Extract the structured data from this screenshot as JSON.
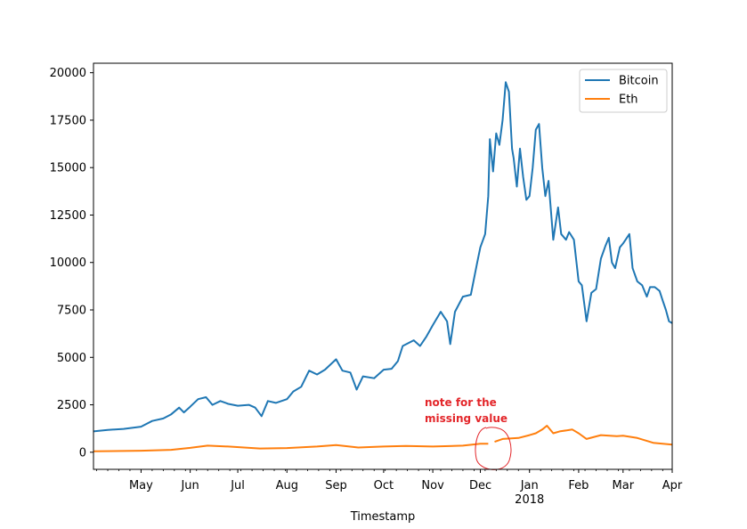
{
  "chart_data": {
    "type": "line",
    "title": "",
    "xlabel": "Timestamp",
    "ylabel": "",
    "xlim": [
      "2017-04-01",
      "2018-04-01"
    ],
    "ylim": [
      -900,
      20500
    ],
    "x_ticks": [
      {
        "date": "2017-05-01",
        "label": "May"
      },
      {
        "date": "2017-06-01",
        "label": "Jun"
      },
      {
        "date": "2017-07-01",
        "label": "Jul"
      },
      {
        "date": "2017-08-01",
        "label": "Aug"
      },
      {
        "date": "2017-09-01",
        "label": "Sep"
      },
      {
        "date": "2017-10-01",
        "label": "Oct"
      },
      {
        "date": "2017-11-01",
        "label": "Nov"
      },
      {
        "date": "2017-12-01",
        "label": "Dec"
      },
      {
        "date": "2018-01-01",
        "label": "Jan",
        "sublabel": "2018"
      },
      {
        "date": "2018-02-01",
        "label": "Feb"
      },
      {
        "date": "2018-03-01",
        "label": "Mar"
      },
      {
        "date": "2018-04-01",
        "label": "Apr"
      }
    ],
    "y_ticks": [
      0,
      2500,
      5000,
      7500,
      10000,
      12500,
      15000,
      17500,
      20000
    ],
    "grid": false,
    "legend": "top-right",
    "series": [
      {
        "name": "Bitcoin",
        "color": "#1f77b4",
        "points": [
          [
            "2017-04-01",
            1100
          ],
          [
            "2017-04-10",
            1180
          ],
          [
            "2017-04-20",
            1230
          ],
          [
            "2017-05-01",
            1350
          ],
          [
            "2017-05-08",
            1650
          ],
          [
            "2017-05-15",
            1780
          ],
          [
            "2017-05-20",
            2000
          ],
          [
            "2017-05-25",
            2350
          ],
          [
            "2017-05-28",
            2100
          ],
          [
            "2017-06-01",
            2400
          ],
          [
            "2017-06-06",
            2800
          ],
          [
            "2017-06-11",
            2900
          ],
          [
            "2017-06-15",
            2500
          ],
          [
            "2017-06-20",
            2700
          ],
          [
            "2017-06-25",
            2550
          ],
          [
            "2017-07-01",
            2450
          ],
          [
            "2017-07-08",
            2500
          ],
          [
            "2017-07-12",
            2350
          ],
          [
            "2017-07-16",
            1900
          ],
          [
            "2017-07-20",
            2700
          ],
          [
            "2017-07-25",
            2600
          ],
          [
            "2017-08-01",
            2800
          ],
          [
            "2017-08-05",
            3200
          ],
          [
            "2017-08-10",
            3450
          ],
          [
            "2017-08-15",
            4300
          ],
          [
            "2017-08-20",
            4100
          ],
          [
            "2017-08-25",
            4350
          ],
          [
            "2017-09-01",
            4900
          ],
          [
            "2017-09-05",
            4300
          ],
          [
            "2017-09-10",
            4200
          ],
          [
            "2017-09-14",
            3300
          ],
          [
            "2017-09-18",
            4000
          ],
          [
            "2017-09-25",
            3900
          ],
          [
            "2017-10-01",
            4350
          ],
          [
            "2017-10-06",
            4400
          ],
          [
            "2017-10-10",
            4800
          ],
          [
            "2017-10-13",
            5600
          ],
          [
            "2017-10-20",
            5900
          ],
          [
            "2017-10-24",
            5600
          ],
          [
            "2017-10-28",
            6100
          ],
          [
            "2017-11-01",
            6700
          ],
          [
            "2017-11-06",
            7400
          ],
          [
            "2017-11-10",
            6900
          ],
          [
            "2017-11-12",
            5700
          ],
          [
            "2017-11-15",
            7400
          ],
          [
            "2017-11-20",
            8200
          ],
          [
            "2017-11-25",
            8300
          ],
          [
            "2017-11-29",
            10000
          ],
          [
            "2017-12-01",
            10800
          ],
          [
            "2017-12-04",
            11500
          ],
          [
            "2017-12-06",
            13500
          ],
          [
            "2017-12-07",
            16500
          ],
          [
            "2017-12-09",
            14800
          ],
          [
            "2017-12-11",
            16800
          ],
          [
            "2017-12-13",
            16200
          ],
          [
            "2017-12-15",
            17500
          ],
          [
            "2017-12-17",
            19500
          ],
          [
            "2017-12-19",
            19000
          ],
          [
            "2017-12-21",
            16000
          ],
          [
            "2017-12-22",
            15500
          ],
          [
            "2017-12-24",
            14000
          ],
          [
            "2017-12-26",
            16000
          ],
          [
            "2017-12-28",
            14500
          ],
          [
            "2017-12-30",
            13300
          ],
          [
            "2018-01-01",
            13500
          ],
          [
            "2018-01-03",
            15000
          ],
          [
            "2018-01-05",
            17000
          ],
          [
            "2018-01-07",
            17300
          ],
          [
            "2018-01-09",
            15000
          ],
          [
            "2018-01-11",
            13500
          ],
          [
            "2018-01-13",
            14300
          ],
          [
            "2018-01-16",
            11200
          ],
          [
            "2018-01-19",
            12900
          ],
          [
            "2018-01-21",
            11500
          ],
          [
            "2018-01-24",
            11200
          ],
          [
            "2018-01-26",
            11600
          ],
          [
            "2018-01-29",
            11200
          ],
          [
            "2018-02-01",
            9000
          ],
          [
            "2018-02-03",
            8800
          ],
          [
            "2018-02-06",
            6900
          ],
          [
            "2018-02-09",
            8400
          ],
          [
            "2018-02-12",
            8600
          ],
          [
            "2018-02-15",
            10200
          ],
          [
            "2018-02-18",
            10900
          ],
          [
            "2018-02-20",
            11300
          ],
          [
            "2018-02-22",
            10000
          ],
          [
            "2018-02-24",
            9700
          ],
          [
            "2018-02-27",
            10800
          ],
          [
            "2018-03-01",
            11000
          ],
          [
            "2018-03-05",
            11500
          ],
          [
            "2018-03-07",
            9700
          ],
          [
            "2018-03-10",
            9000
          ],
          [
            "2018-03-13",
            8800
          ],
          [
            "2018-03-16",
            8200
          ],
          [
            "2018-03-18",
            8700
          ],
          [
            "2018-03-21",
            8700
          ],
          [
            "2018-03-24",
            8500
          ],
          [
            "2018-03-26",
            8000
          ],
          [
            "2018-03-28",
            7500
          ],
          [
            "2018-03-30",
            6900
          ],
          [
            "2018-04-01",
            6800
          ]
        ]
      },
      {
        "name": "Eth",
        "color": "#ff7f0e",
        "points": [
          [
            "2017-04-01",
            50
          ],
          [
            "2017-05-01",
            80
          ],
          [
            "2017-05-20",
            130
          ],
          [
            "2017-06-01",
            230
          ],
          [
            "2017-06-12",
            350
          ],
          [
            "2017-06-25",
            300
          ],
          [
            "2017-07-15",
            200
          ],
          [
            "2017-08-01",
            220
          ],
          [
            "2017-08-20",
            300
          ],
          [
            "2017-09-01",
            380
          ],
          [
            "2017-09-15",
            250
          ],
          [
            "2017-10-01",
            300
          ],
          [
            "2017-10-15",
            330
          ],
          [
            "2017-11-01",
            300
          ],
          [
            "2017-11-20",
            350
          ],
          [
            "2017-12-01",
            450
          ],
          [
            "2017-12-06",
            450
          ],
          null,
          [
            "2017-12-10",
            550
          ],
          [
            "2017-12-15",
            700
          ],
          [
            "2017-12-25",
            750
          ],
          [
            "2018-01-01",
            900
          ],
          [
            "2018-01-05",
            1000
          ],
          [
            "2018-01-09",
            1200
          ],
          [
            "2018-01-12",
            1400
          ],
          [
            "2018-01-16",
            1000
          ],
          [
            "2018-01-20",
            1100
          ],
          [
            "2018-01-28",
            1200
          ],
          [
            "2018-02-01",
            1000
          ],
          [
            "2018-02-06",
            700
          ],
          [
            "2018-02-15",
            900
          ],
          [
            "2018-02-25",
            850
          ],
          [
            "2018-03-01",
            870
          ],
          [
            "2018-03-10",
            750
          ],
          [
            "2018-03-20",
            500
          ],
          [
            "2018-04-01",
            400
          ]
        ]
      }
    ],
    "annotations": [
      {
        "text_lines": [
          "note for the",
          "missing value"
        ],
        "color": "#e3262a"
      }
    ]
  }
}
